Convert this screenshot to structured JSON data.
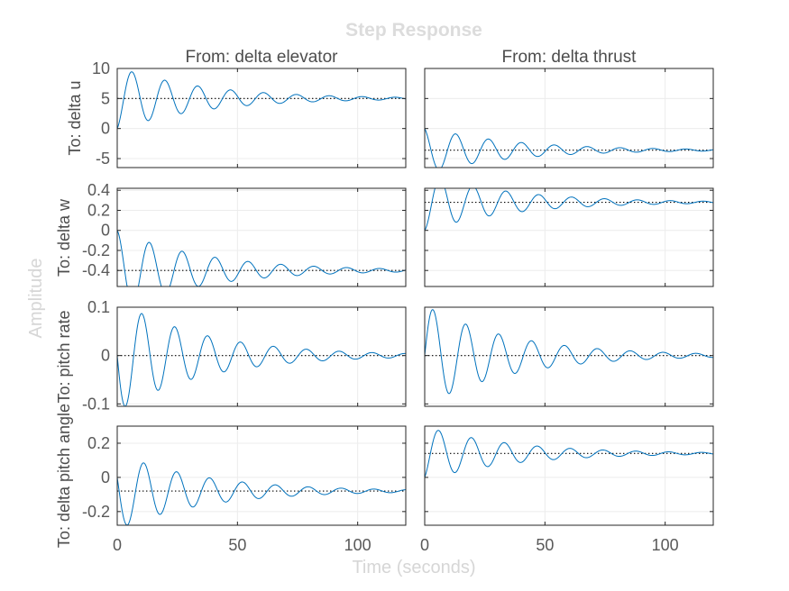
{
  "chart_data": {
    "type": "line",
    "title": "Step Response",
    "xlabel": "Time (seconds)",
    "ylabel": "Amplitude",
    "xlim": [
      0,
      120
    ],
    "xticks": [
      0,
      50,
      100
    ],
    "grid": true,
    "inputs": [
      "From: delta elevator",
      "From: delta thrust"
    ],
    "outputs": [
      "To: delta u",
      "To: delta w",
      "To: pitch rate",
      "To: delta pitch angle"
    ],
    "rows": [
      {
        "ylim": [
          -6.5,
          10
        ],
        "yticks": [
          -5,
          0,
          5,
          10
        ],
        "ytick_labels": [
          "-5",
          "0",
          "5",
          "10"
        ],
        "panels": [
          {
            "initial": 0,
            "steady_state": 5,
            "overshoot": 3.5,
            "sign": 1,
            "omega": 0.46,
            "zeta": 0.06,
            "t_peak": 7.0
          },
          {
            "initial": 0,
            "steady_state": -3.6,
            "overshoot": 2.9,
            "sign": -1,
            "omega": 0.46,
            "zeta": 0.06,
            "t_peak": 7.0
          }
        ]
      },
      {
        "ylim": [
          -0.56,
          0.42
        ],
        "yticks": [
          -0.4,
          -0.2,
          0,
          0.2,
          0.4
        ],
        "ytick_labels": [
          "-0.4",
          "-0.2",
          "0",
          "0.2",
          "0.4"
        ],
        "panels": [
          {
            "initial": 0,
            "steady_state": -0.4,
            "overshoot": 0.15,
            "sign": -1,
            "omega": 0.46,
            "zeta": 0.06,
            "t_peak": 7.0
          },
          {
            "initial": 0,
            "steady_state": 0.28,
            "overshoot": 0.13,
            "sign": 1,
            "omega": 0.46,
            "zeta": 0.06,
            "t_peak": 7.0
          }
        ]
      },
      {
        "ylim": [
          -0.105,
          0.1
        ],
        "yticks": [
          -0.1,
          0,
          0.1
        ],
        "ytick_labels": [
          "-0.1",
          "0",
          "0.1"
        ],
        "panels": [
          {
            "initial": 0,
            "steady_state": 0,
            "amp": -0.105,
            "omega": 0.46,
            "zeta": 0.06,
            "impulse": true
          },
          {
            "initial": 0,
            "steady_state": 0,
            "amp": 0.095,
            "omega": 0.46,
            "zeta": 0.06,
            "impulse": true
          }
        ]
      },
      {
        "ylim": [
          -0.28,
          0.3
        ],
        "yticks": [
          -0.2,
          0,
          0.2
        ],
        "ytick_labels": [
          "-0.2",
          "0",
          "0.2"
        ],
        "panels": [
          {
            "initial": 0,
            "steady_state": -0.08,
            "amp": -0.27,
            "omega": 0.46,
            "zeta": 0.06,
            "mixed": true
          },
          {
            "initial": 0,
            "steady_state": 0.14,
            "overshoot": 0.15,
            "sign": 1,
            "omega": 0.46,
            "zeta": 0.06,
            "t_peak": 7.0
          }
        ]
      }
    ]
  }
}
